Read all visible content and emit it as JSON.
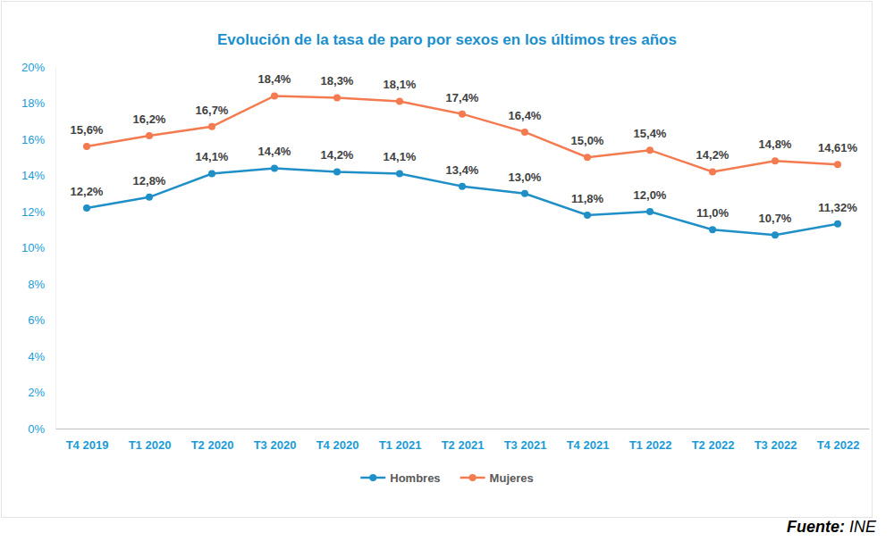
{
  "chart_data": {
    "type": "line",
    "title": "Evolución de la tasa de paro por sexos en los últimos tres años",
    "categories": [
      "T4 2019",
      "T1 2020",
      "T2 2020",
      "T3 2020",
      "T4 2020",
      "T1 2021",
      "T2 2021",
      "T3 2021",
      "T4 2021",
      "T1 2022",
      "T2 2022",
      "T3 2022",
      "T4 2022"
    ],
    "series": [
      {
        "name": "Hombres",
        "color": "#1f8fc8",
        "marker": "circle",
        "line_style": "solid",
        "values": [
          12.2,
          12.8,
          14.1,
          14.4,
          14.2,
          14.1,
          13.4,
          13.0,
          11.8,
          12.0,
          11.0,
          10.7,
          11.32
        ],
        "value_labels": [
          "12,2%",
          "12,8%",
          "14,1%",
          "14,4%",
          "14,2%",
          "14,1%",
          "13,4%",
          "13,0%",
          "11,8%",
          "12,0%",
          "11,0%",
          "10,7%",
          "11,32%"
        ]
      },
      {
        "name": "Mujeres",
        "color": "#f47a50",
        "marker": "circle",
        "line_style": "solid",
        "values": [
          15.6,
          16.2,
          16.7,
          18.4,
          18.3,
          18.1,
          17.4,
          16.4,
          15.0,
          15.4,
          14.2,
          14.8,
          14.61
        ],
        "value_labels": [
          "15,6%",
          "16,2%",
          "16,7%",
          "18,4%",
          "18,3%",
          "18,1%",
          "17,4%",
          "16,4%",
          "15,0%",
          "15,4%",
          "14,2%",
          "14,8%",
          "14,61%"
        ]
      }
    ],
    "ylim": [
      0,
      20
    ],
    "yticks": [
      {
        "value": 0,
        "label": "0%"
      },
      {
        "value": 2,
        "label": "2%"
      },
      {
        "value": 4,
        "label": "4%"
      },
      {
        "value": 6,
        "label": "6%"
      },
      {
        "value": 8,
        "label": "8%"
      },
      {
        "value": 10,
        "label": "10%"
      },
      {
        "value": 12,
        "label": "12%"
      },
      {
        "value": 14,
        "label": "14%"
      },
      {
        "value": 16,
        "label": "16%"
      },
      {
        "value": 18,
        "label": "18%"
      },
      {
        "value": 20,
        "label": "20%"
      }
    ],
    "grid": false,
    "data_labels": true,
    "legend": "bottom",
    "annotations": [
      "Fuente:",
      "INE"
    ]
  }
}
